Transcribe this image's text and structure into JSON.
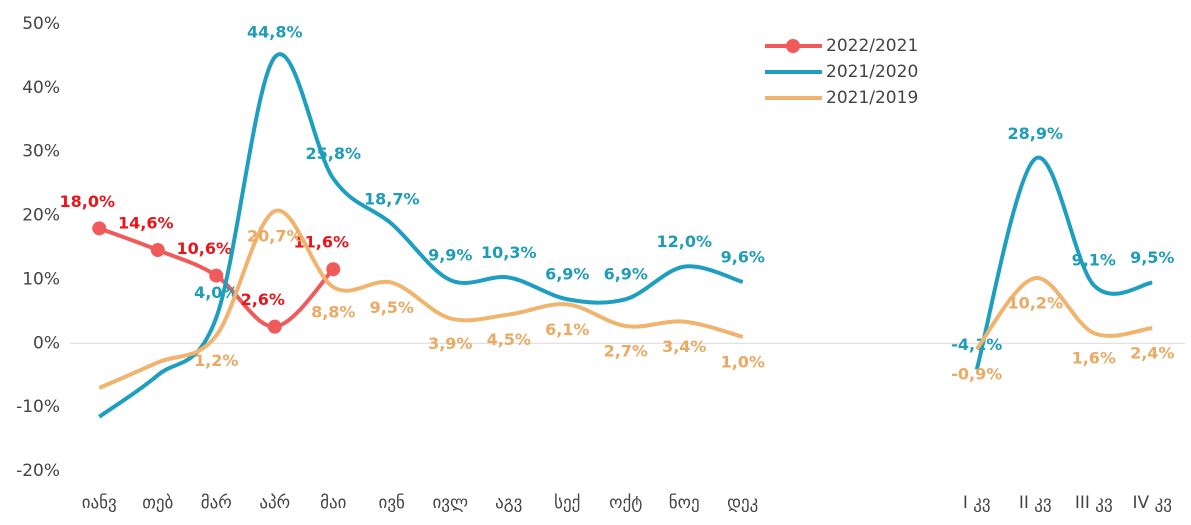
{
  "chart_data": {
    "type": "line",
    "categories": [
      "იანვ",
      "თებ",
      "მარ",
      "აპრ",
      "მაი",
      "ივნ",
      "ივლ",
      "აგვ",
      "სექ",
      "ოქტ",
      "ნოე",
      "დეკ",
      null,
      null,
      null,
      "I კვ",
      "II კვ",
      "III კვ",
      "IV კვ"
    ],
    "series": [
      {
        "name": "2022/2021",
        "color": "#f05a5a",
        "label_color": "#e8151b",
        "marker": true,
        "values": [
          18.0,
          14.6,
          10.6,
          2.6,
          11.6,
          null,
          null,
          null,
          null,
          null,
          null,
          null,
          null,
          null,
          null,
          null,
          null,
          null,
          null
        ],
        "value_labels": [
          "18,0%",
          "14,6%",
          "10,6%",
          "2,6%",
          "11,6%",
          null,
          null,
          null,
          null,
          null,
          null,
          null,
          null,
          null,
          null,
          null,
          null,
          null,
          null
        ]
      },
      {
        "name": "2021/2020",
        "color": "#1f9fbf",
        "label_color": "#1e9cb8",
        "marker": false,
        "values": [
          -11.5,
          -5,
          4.0,
          44.8,
          25.8,
          18.7,
          9.9,
          10.3,
          6.9,
          6.9,
          12.0,
          9.6,
          null,
          null,
          null,
          -4.1,
          28.9,
          9.1,
          9.5
        ],
        "value_labels": [
          null,
          null,
          "4,0%",
          "44,8%",
          "25,8%",
          "18,7%",
          "9,9%",
          "10,3%",
          "6,9%",
          "6,9%",
          "12,0%",
          "9,6%",
          null,
          null,
          null,
          "-4,1%",
          "28,9%",
          "9,1%",
          "9,5%"
        ]
      },
      {
        "name": "2021/2019",
        "color": "#f0b46e",
        "label_color": "#eba963",
        "marker": false,
        "values": [
          -7,
          -3,
          1.2,
          20.7,
          8.8,
          9.5,
          3.9,
          4.5,
          6.1,
          2.7,
          3.4,
          1.0,
          null,
          null,
          null,
          -0.9,
          10.2,
          1.6,
          2.4
        ],
        "value_labels": [
          null,
          null,
          "1,2%",
          "20,7%",
          "8,8%",
          "9,5%",
          "3,9%",
          "4,5%",
          "6,1%",
          "2,7%",
          "3,4%",
          "1,0%",
          null,
          null,
          null,
          "-0,9%",
          "10,2%",
          "1,6%",
          "2,4%"
        ]
      }
    ],
    "ylim": [
      -20,
      50
    ],
    "yticks": [
      {
        "value": -20,
        "label": "-20%"
      },
      {
        "value": -10,
        "label": "-10%"
      },
      {
        "value": 0,
        "label": "0%"
      },
      {
        "value": 10,
        "label": "10%"
      },
      {
        "value": 20,
        "label": "20%"
      },
      {
        "value": 30,
        "label": "30%"
      },
      {
        "value": 40,
        "label": "40%"
      },
      {
        "value": 50,
        "label": "50%"
      }
    ],
    "grid": false,
    "legend": "top-right"
  }
}
